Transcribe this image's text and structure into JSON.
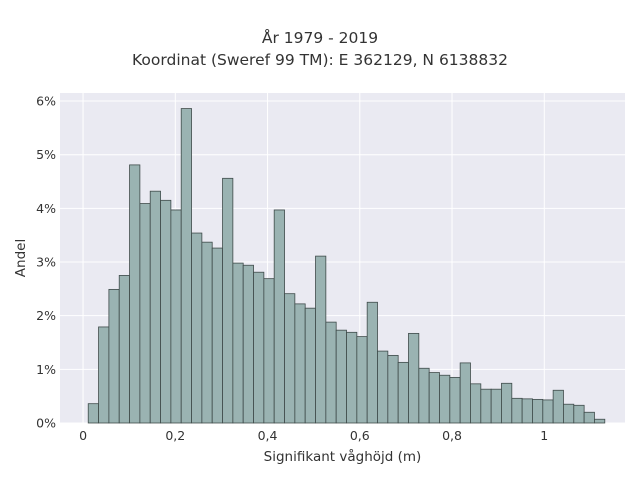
{
  "chart_data": {
    "type": "bar",
    "title": "År 1979 - 2019",
    "subtitle": "Koordinat (Sweref 99 TM): E 362129, N 6138832",
    "xlabel": "Signifikant våghöjd (m)",
    "ylabel": "Andel",
    "xlim": [
      -0.05,
      1.175
    ],
    "ylim": [
      0,
      0.0615
    ],
    "xticks": [
      0,
      0.2,
      0.4,
      0.6,
      0.8,
      1
    ],
    "xtick_labels": [
      "0",
      "0,2",
      "0,4",
      "0,6",
      "0,8",
      "1"
    ],
    "yticks": [
      0,
      0.01,
      0.02,
      0.03,
      0.04,
      0.05,
      0.06
    ],
    "ytick_labels": [
      "0%",
      "1%",
      "2%",
      "3%",
      "4%",
      "5%",
      "6%"
    ],
    "bin_width": 0.0224,
    "bin_start": 0.0112,
    "values": [
      0.0036,
      0.0179,
      0.0249,
      0.0275,
      0.0481,
      0.0409,
      0.0432,
      0.0415,
      0.0397,
      0.0586,
      0.0354,
      0.0337,
      0.0326,
      0.0456,
      0.0298,
      0.0294,
      0.0281,
      0.0269,
      0.0397,
      0.0241,
      0.0222,
      0.0214,
      0.0311,
      0.0188,
      0.0173,
      0.0169,
      0.0161,
      0.0225,
      0.0134,
      0.0126,
      0.0113,
      0.0167,
      0.0102,
      0.0094,
      0.0089,
      0.0085,
      0.0112,
      0.0073,
      0.0063,
      0.0063,
      0.0074,
      0.0046,
      0.0045,
      0.0044,
      0.0043,
      0.0061,
      0.0035,
      0.0033,
      0.002,
      0.0007
    ],
    "grid": true,
    "colors": {
      "bar_fill": "#9ab3b2",
      "bar_stroke": "#3f4b4a",
      "plot_bg": "#eaeaf2",
      "grid": "#ffffff"
    }
  }
}
